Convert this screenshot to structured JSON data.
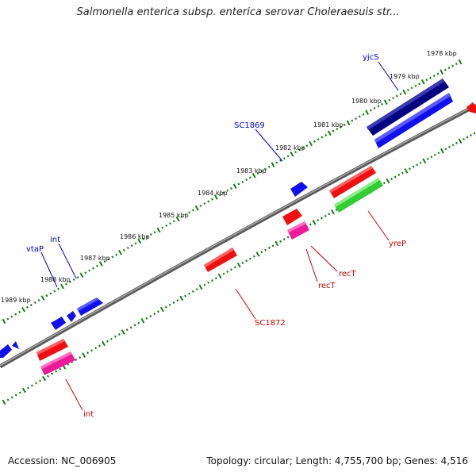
{
  "title": "Salmonella enterica subsp. enterica serovar Choleraesuis str...",
  "footer": {
    "accession": "Accession: NC_006905",
    "summary": "Topology: circular; Length: 4,755,700 bp; Genes: 4,516"
  },
  "colors": {
    "backbone": "#808080",
    "tick_dots": "#1a7a1a",
    "forward_label": "#0000cc",
    "reverse_label": "#cc0000",
    "blue_gene": "#1010ee",
    "navy_gene": "#000080",
    "red_gene": "#ee1010",
    "pink_gene": "#ee1a9a",
    "green_gene": "#33cc33"
  },
  "scale_ticks": [
    {
      "label": "1978 kbp"
    },
    {
      "label": "1979 kbp"
    },
    {
      "label": "1980 kbp"
    },
    {
      "label": "1981 kbp"
    },
    {
      "label": "1982 kbp"
    },
    {
      "label": "1983 kbp"
    },
    {
      "label": "1984 kbp"
    },
    {
      "label": "1985 kbp"
    },
    {
      "label": "1986 kbp"
    },
    {
      "label": "1987 kbp"
    },
    {
      "label": "1988 kbp"
    },
    {
      "label": "1989 kbp"
    }
  ],
  "gene_labels": [
    {
      "label": "yjcS",
      "strand": "forward"
    },
    {
      "label": "SC1869",
      "strand": "forward"
    },
    {
      "label": "vtaP",
      "strand": "forward"
    },
    {
      "label": "int",
      "strand": "forward"
    },
    {
      "label": "yreP",
      "strand": "reverse"
    },
    {
      "label": "recT",
      "strand": "reverse"
    },
    {
      "label": "recT",
      "strand": "reverse"
    },
    {
      "label": "SC1872",
      "strand": "reverse"
    },
    {
      "label": "int",
      "strand": "reverse"
    }
  ]
}
